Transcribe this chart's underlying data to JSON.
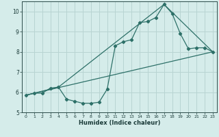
{
  "xlabel": "Humidex (Indice chaleur)",
  "bg_color": "#d5ecea",
  "grid_color": "#b8d4d2",
  "line_color": "#2d7068",
  "xlim": [
    -0.5,
    23.5
  ],
  "ylim": [
    5,
    10.5
  ],
  "yticks": [
    5,
    6,
    7,
    8,
    9,
    10
  ],
  "xticks": [
    0,
    1,
    2,
    3,
    4,
    5,
    6,
    7,
    8,
    9,
    10,
    11,
    12,
    13,
    14,
    15,
    16,
    17,
    18,
    19,
    20,
    21,
    22,
    23
  ],
  "line1_x": [
    0,
    1,
    2,
    3,
    4,
    5,
    6,
    7,
    8,
    9,
    10,
    11,
    12,
    13,
    14,
    15,
    16,
    17,
    18,
    19,
    20,
    21,
    22,
    23
  ],
  "line1_y": [
    5.85,
    5.95,
    5.95,
    6.2,
    6.25,
    5.65,
    5.55,
    5.45,
    5.45,
    5.5,
    6.15,
    8.3,
    8.5,
    8.6,
    9.45,
    9.5,
    9.7,
    10.35,
    9.9,
    8.9,
    8.15,
    8.2,
    8.2,
    8.0
  ],
  "line2_x": [
    0,
    23
  ],
  "line2_y": [
    5.85,
    8.0
  ],
  "line3_x": [
    0,
    4,
    17,
    23
  ],
  "line3_y": [
    5.85,
    6.25,
    10.35,
    8.0
  ]
}
